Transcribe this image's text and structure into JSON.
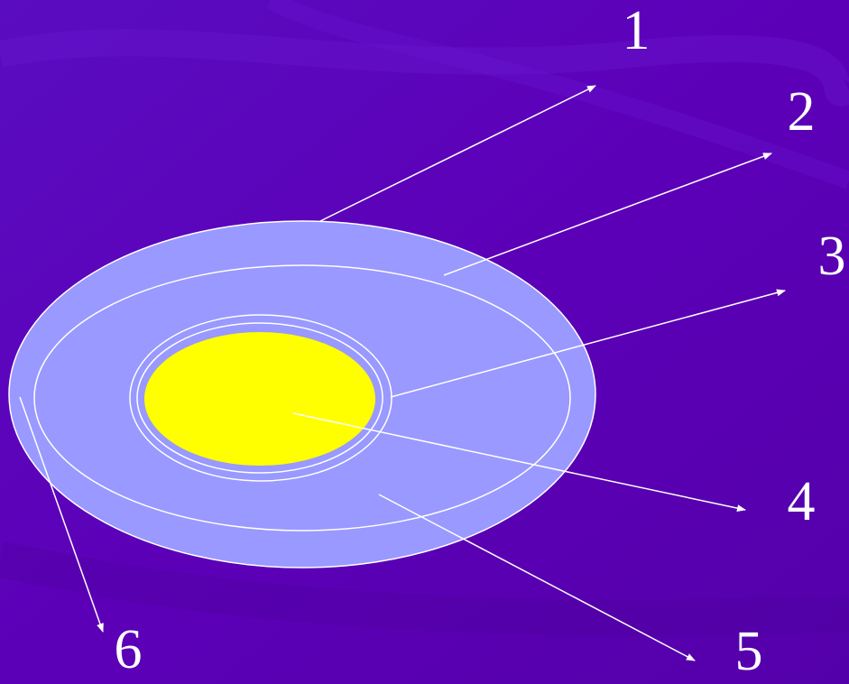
{
  "callouts": [
    {
      "label": "1"
    },
    {
      "label": "2"
    },
    {
      "label": "3"
    },
    {
      "label": "4"
    },
    {
      "label": "5"
    },
    {
      "label": "6"
    }
  ]
}
